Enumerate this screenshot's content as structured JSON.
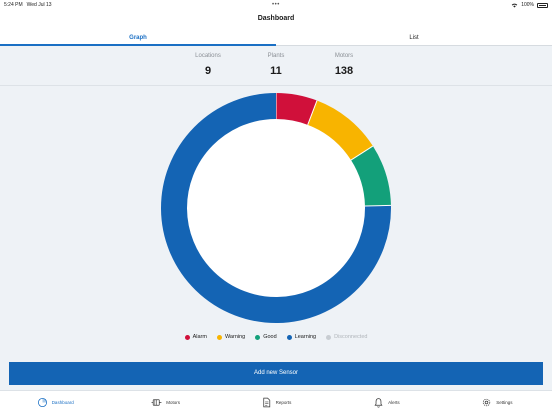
{
  "status": {
    "time": "5:24 PM",
    "date": "Wed Jul 13",
    "battery": "100%"
  },
  "navbar": {
    "title": "Dashboard"
  },
  "segments": [
    {
      "label": "Graph",
      "active": true
    },
    {
      "label": "List",
      "active": false
    }
  ],
  "stats": [
    {
      "label": "Locations",
      "value": "9"
    },
    {
      "label": "Plants",
      "value": "11"
    },
    {
      "label": "Motors",
      "value": "138"
    }
  ],
  "chart_data": {
    "type": "pie",
    "style": "donut",
    "slices": [
      {
        "name": "Alarm",
        "value": 8,
        "color": "#d0103a"
      },
      {
        "name": "Warning",
        "value": 14,
        "color": "#f8b400"
      },
      {
        "name": "Good",
        "value": 12,
        "color": "#13a07a"
      },
      {
        "name": "Learning",
        "value": 104,
        "color": "#1464b4"
      },
      {
        "name": "Disconnected",
        "value": 0,
        "color": "#c8cdd2"
      }
    ],
    "legend_position": "bottom"
  },
  "add_button": {
    "label": "Add new Sensor"
  },
  "tabbar": [
    {
      "label": "Dashboard",
      "icon": "dashboard-icon",
      "active": true
    },
    {
      "label": "Motors",
      "icon": "motor-icon",
      "active": false
    },
    {
      "label": "Reports",
      "icon": "reports-icon",
      "active": false
    },
    {
      "label": "Alerts",
      "icon": "bell-icon",
      "active": false
    },
    {
      "label": "Settings",
      "icon": "gear-icon",
      "active": false
    }
  ]
}
